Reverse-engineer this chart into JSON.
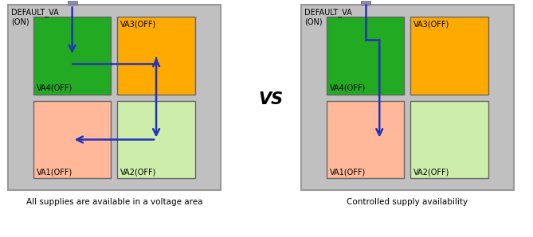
{
  "fig_width": 6.69,
  "fig_height": 2.98,
  "dpi": 100,
  "bg_color": "#c0c0c0",
  "green_color": "#22aa22",
  "orange_color": "#ffaa00",
  "salmon_color": "#ffb899",
  "lightgreen_color": "#cceeaa",
  "arrow_color": "#2233bb",
  "pin_color": "#8888aa",
  "caption_left": "All supplies are available in a voltage area",
  "caption_right": "Controlled supply availability",
  "vs_text": "VS",
  "default_va_text": "DEFAULT_VA\n(ON)",
  "va4": "VA4(OFF)",
  "va3": "VA3(OFF)",
  "va1": "VA1(OFF)",
  "va2": "VA2(OFF)"
}
